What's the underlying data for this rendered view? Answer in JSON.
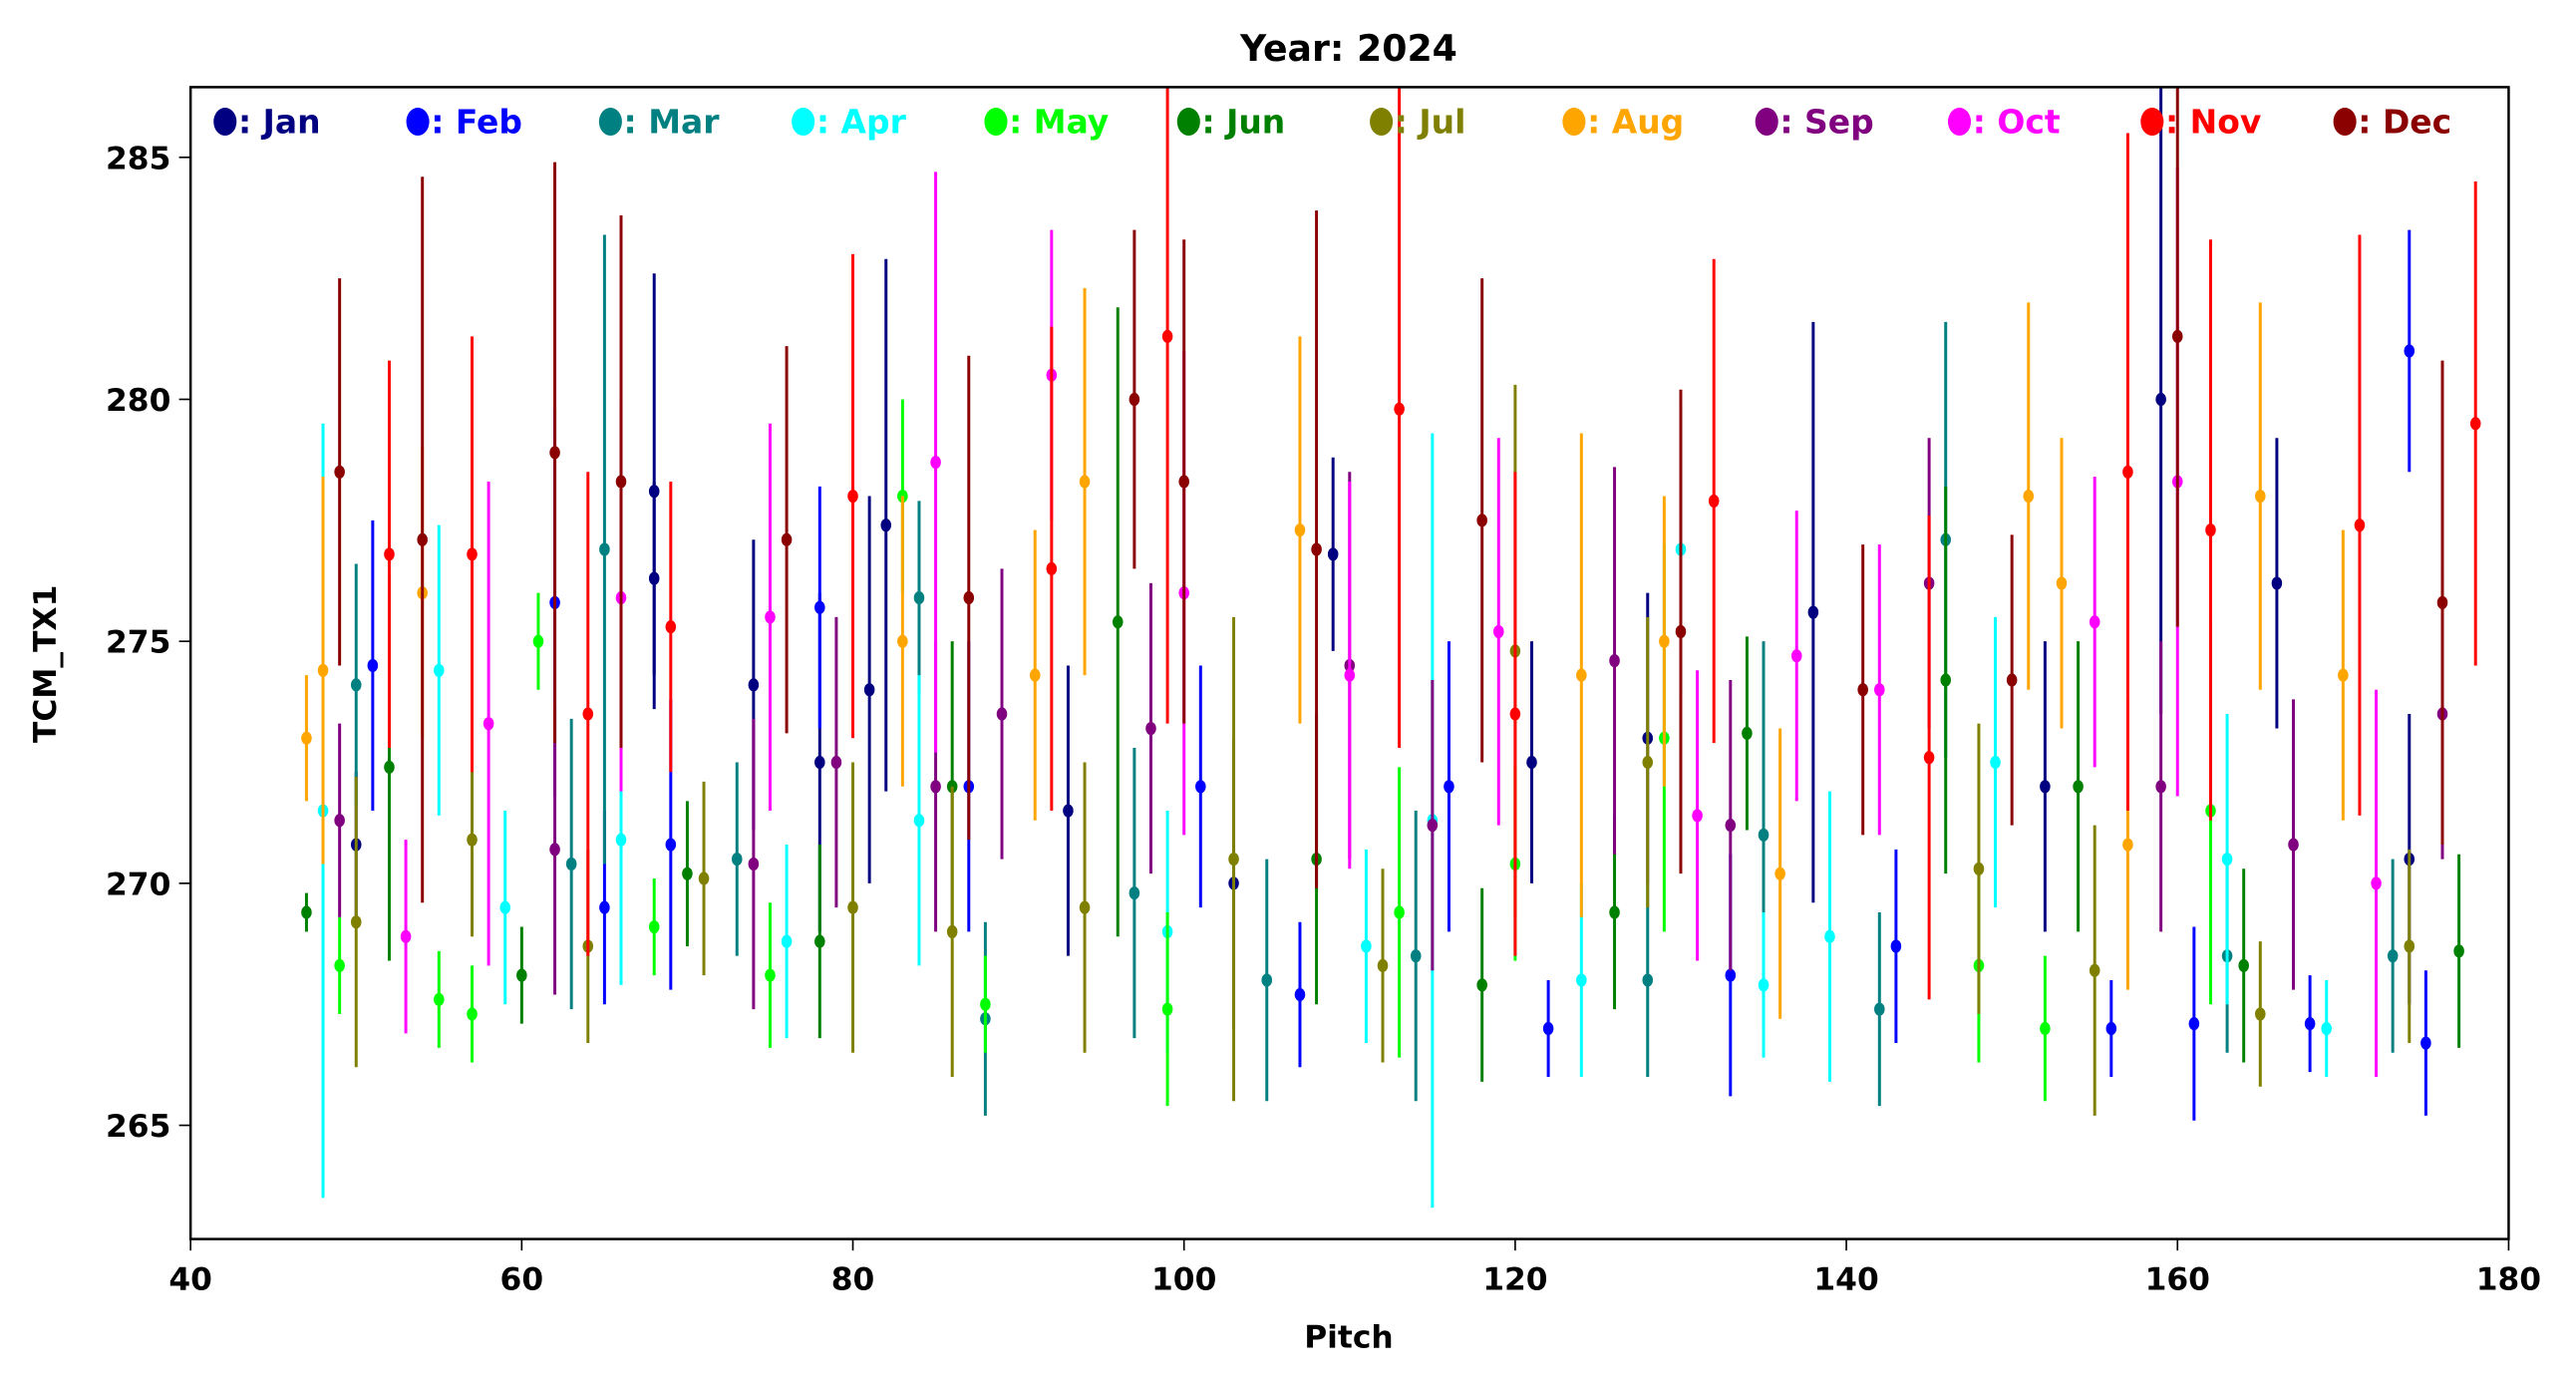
{
  "chart_data": {
    "type": "scatter",
    "title": "Year: 2024",
    "xlabel": "Pitch",
    "ylabel": "TCM_TX1",
    "xlim": [
      40,
      180
    ],
    "ylim": [
      262.65,
      286.45
    ],
    "xticks": [
      40,
      60,
      80,
      100,
      120,
      140,
      160,
      180
    ],
    "yticks": [
      265,
      270,
      275,
      280,
      285
    ],
    "grid": false,
    "legend_placement": "top, single row inside axes",
    "point_format": "[pitch, mean, error]",
    "series": [
      {
        "name": "Jan",
        "label": ": Jan",
        "color": "#000080",
        "points": [
          [
            50,
            270.8,
            1.5
          ],
          [
            68,
            278.1,
            4.5
          ],
          [
            68,
            276.3,
            2
          ],
          [
            74,
            274.1,
            3
          ],
          [
            78,
            272.5,
            3.5
          ],
          [
            81,
            274,
            4
          ],
          [
            82,
            277.4,
            5.5
          ],
          [
            93,
            271.5,
            3
          ],
          [
            103,
            270,
            3
          ],
          [
            109,
            276.8,
            2
          ],
          [
            121,
            272.5,
            2.5
          ],
          [
            128,
            273,
            3
          ],
          [
            138,
            275.6,
            6
          ],
          [
            152,
            272,
            3
          ],
          [
            159,
            280,
            6.5
          ],
          [
            166,
            276.2,
            3
          ],
          [
            174,
            270.5,
            3
          ]
        ]
      },
      {
        "name": "Feb",
        "label": ": Feb",
        "color": "#0000ff",
        "points": [
          [
            51,
            274.5,
            3
          ],
          [
            62,
            275.8,
            4
          ],
          [
            65,
            269.5,
            2
          ],
          [
            69,
            270.8,
            3
          ],
          [
            78,
            275.7,
            2.5
          ],
          [
            87,
            272,
            3
          ],
          [
            101,
            272,
            2.5
          ],
          [
            107,
            267.7,
            1.5
          ],
          [
            116,
            272,
            3
          ],
          [
            122,
            267,
            1
          ],
          [
            133,
            268.1,
            2.5
          ],
          [
            143,
            268.7,
            2
          ],
          [
            156,
            267,
            1
          ],
          [
            161,
            267.1,
            2
          ],
          [
            168,
            267.1,
            1
          ],
          [
            174,
            281,
            2.5
          ],
          [
            175,
            266.7,
            1.5
          ]
        ]
      },
      {
        "name": "Mar",
        "label": ": Mar",
        "color": "#008080",
        "points": [
          [
            50,
            274.1,
            2.5
          ],
          [
            63,
            270.4,
            3
          ],
          [
            65,
            276.9,
            6.5
          ],
          [
            73,
            270.5,
            2
          ],
          [
            84,
            275.9,
            2
          ],
          [
            88,
            267.2,
            2
          ],
          [
            97,
            269.8,
            3
          ],
          [
            105,
            268,
            2.5
          ],
          [
            114,
            268.5,
            3
          ],
          [
            128,
            268,
            2
          ],
          [
            135,
            271,
            4
          ],
          [
            142,
            267.4,
            2
          ],
          [
            146,
            277.1,
            4.5
          ],
          [
            163,
            268.5,
            2
          ],
          [
            173,
            268.5,
            2
          ]
        ]
      },
      {
        "name": "Apr",
        "label": ": Apr",
        "color": "#00ffff",
        "points": [
          [
            48,
            271.5,
            8
          ],
          [
            55,
            274.4,
            3
          ],
          [
            59,
            269.5,
            2
          ],
          [
            66,
            270.9,
            3
          ],
          [
            76,
            268.8,
            2
          ],
          [
            84,
            271.3,
            3
          ],
          [
            99,
            269,
            2.5
          ],
          [
            111,
            268.7,
            2
          ],
          [
            115,
            271.3,
            8
          ],
          [
            124,
            268,
            2
          ],
          [
            130,
            276.9,
            3
          ],
          [
            135,
            267.9,
            1.5
          ],
          [
            139,
            268.9,
            3
          ],
          [
            149,
            272.5,
            3
          ],
          [
            163,
            270.5,
            3
          ],
          [
            169,
            267,
            1
          ]
        ]
      },
      {
        "name": "May",
        "label": ": May",
        "color": "#00ff00",
        "points": [
          [
            49,
            268.3,
            1
          ],
          [
            55,
            267.6,
            1
          ],
          [
            57,
            267.3,
            1
          ],
          [
            61,
            275,
            1
          ],
          [
            68,
            269.1,
            1
          ],
          [
            75,
            268.1,
            1.5
          ],
          [
            83,
            278,
            2
          ],
          [
            88,
            267.5,
            1
          ],
          [
            99,
            267.4,
            2
          ],
          [
            113,
            269.4,
            3
          ],
          [
            120,
            270.4,
            2
          ],
          [
            129,
            273,
            4
          ],
          [
            148,
            268.3,
            2
          ],
          [
            152,
            267,
            1.5
          ],
          [
            162,
            271.5,
            4
          ]
        ]
      },
      {
        "name": "Jun",
        "label": ": Jun",
        "color": "#008000",
        "points": [
          [
            47,
            269.4,
            0.4
          ],
          [
            52,
            272.4,
            4
          ],
          [
            60,
            268.1,
            1
          ],
          [
            70,
            270.2,
            1.5
          ],
          [
            78,
            268.8,
            2
          ],
          [
            86,
            272,
            3
          ],
          [
            96,
            275.4,
            6.5
          ],
          [
            108,
            270.5,
            3
          ],
          [
            118,
            267.9,
            2
          ],
          [
            126,
            269.4,
            2
          ],
          [
            134,
            273.1,
            2
          ],
          [
            146,
            274.2,
            4
          ],
          [
            154,
            272,
            3
          ],
          [
            164,
            268.3,
            2
          ],
          [
            177,
            268.6,
            2
          ]
        ]
      },
      {
        "name": "Jul",
        "label": ": Jul",
        "color": "#808000",
        "points": [
          [
            50,
            269.2,
            3
          ],
          [
            57,
            270.9,
            2
          ],
          [
            64,
            268.7,
            2
          ],
          [
            71,
            270.1,
            2
          ],
          [
            80,
            269.5,
            3
          ],
          [
            86,
            269,
            3
          ],
          [
            94,
            269.5,
            3
          ],
          [
            103,
            270.5,
            5
          ],
          [
            112,
            268.3,
            2
          ],
          [
            120,
            274.8,
            5.5
          ],
          [
            128,
            272.5,
            3
          ],
          [
            148,
            270.3,
            3
          ],
          [
            155,
            268.2,
            3
          ],
          [
            165,
            267.3,
            1.5
          ],
          [
            174,
            268.7,
            2
          ]
        ]
      },
      {
        "name": "Aug",
        "label": ": Aug",
        "color": "#ffa500",
        "points": [
          [
            47,
            273,
            1.3
          ],
          [
            48,
            274.4,
            4
          ],
          [
            54,
            276,
            3
          ],
          [
            83,
            275,
            3
          ],
          [
            91,
            274.3,
            3
          ],
          [
            94,
            278.3,
            4
          ],
          [
            107,
            277.3,
            4
          ],
          [
            124,
            274.3,
            5
          ],
          [
            129,
            275,
            3
          ],
          [
            136,
            270.2,
            3
          ],
          [
            151,
            278,
            4
          ],
          [
            153,
            276.2,
            3
          ],
          [
            157,
            270.8,
            3
          ],
          [
            165,
            278,
            4
          ],
          [
            170,
            274.3,
            3
          ]
        ]
      },
      {
        "name": "Sep",
        "label": ": Sep",
        "color": "#800080",
        "points": [
          [
            49,
            271.3,
            2
          ],
          [
            62,
            270.7,
            3
          ],
          [
            74,
            270.4,
            3
          ],
          [
            79,
            272.5,
            3
          ],
          [
            85,
            272,
            3
          ],
          [
            89,
            273.5,
            3
          ],
          [
            98,
            273.2,
            3
          ],
          [
            110,
            274.5,
            4
          ],
          [
            115,
            271.2,
            3
          ],
          [
            126,
            274.6,
            4
          ],
          [
            133,
            271.2,
            3
          ],
          [
            145,
            276.2,
            3
          ],
          [
            159,
            272,
            3
          ],
          [
            167,
            270.8,
            3
          ],
          [
            176,
            273.5,
            3
          ]
        ]
      },
      {
        "name": "Oct",
        "label": ": Oct",
        "color": "#ff00ff",
        "points": [
          [
            53,
            268.9,
            2
          ],
          [
            58,
            273.3,
            5
          ],
          [
            66,
            275.9,
            4
          ],
          [
            75,
            275.5,
            4
          ],
          [
            85,
            278.7,
            6
          ],
          [
            92,
            280.5,
            3
          ],
          [
            100,
            276,
            5
          ],
          [
            110,
            274.3,
            4
          ],
          [
            119,
            275.2,
            4
          ],
          [
            131,
            271.4,
            3
          ],
          [
            137,
            274.7,
            3
          ],
          [
            142,
            274,
            3
          ],
          [
            155,
            275.4,
            3
          ],
          [
            160,
            278.3,
            6.5
          ],
          [
            172,
            270,
            4
          ]
        ]
      },
      {
        "name": "Nov",
        "label": ": Nov",
        "color": "#ff0000",
        "points": [
          [
            52,
            276.8,
            4
          ],
          [
            57,
            276.8,
            4.5
          ],
          [
            64,
            273.5,
            5
          ],
          [
            69,
            275.3,
            3
          ],
          [
            80,
            278,
            5
          ],
          [
            92,
            276.5,
            5
          ],
          [
            99,
            281.3,
            8
          ],
          [
            113,
            279.8,
            7
          ],
          [
            120,
            273.5,
            5
          ],
          [
            132,
            277.9,
            5
          ],
          [
            145,
            272.6,
            5
          ],
          [
            157,
            278.5,
            7
          ],
          [
            162,
            277.3,
            6
          ],
          [
            171,
            277.4,
            6
          ],
          [
            178,
            279.5,
            5
          ]
        ]
      },
      {
        "name": "Dec",
        "label": ": Dec",
        "color": "#8b0000",
        "points": [
          [
            49,
            278.5,
            4
          ],
          [
            54,
            277.1,
            7.5
          ],
          [
            62,
            278.9,
            6
          ],
          [
            66,
            278.3,
            5.5
          ],
          [
            76,
            277.1,
            4
          ],
          [
            87,
            275.9,
            5
          ],
          [
            97,
            280,
            3.5
          ],
          [
            100,
            278.3,
            5
          ],
          [
            108,
            276.9,
            7
          ],
          [
            118,
            277.5,
            5
          ],
          [
            130,
            275.2,
            5
          ],
          [
            141,
            274,
            3
          ],
          [
            150,
            274.2,
            3
          ],
          [
            160,
            281.3,
            6
          ],
          [
            176,
            275.8,
            5
          ]
        ]
      }
    ]
  }
}
